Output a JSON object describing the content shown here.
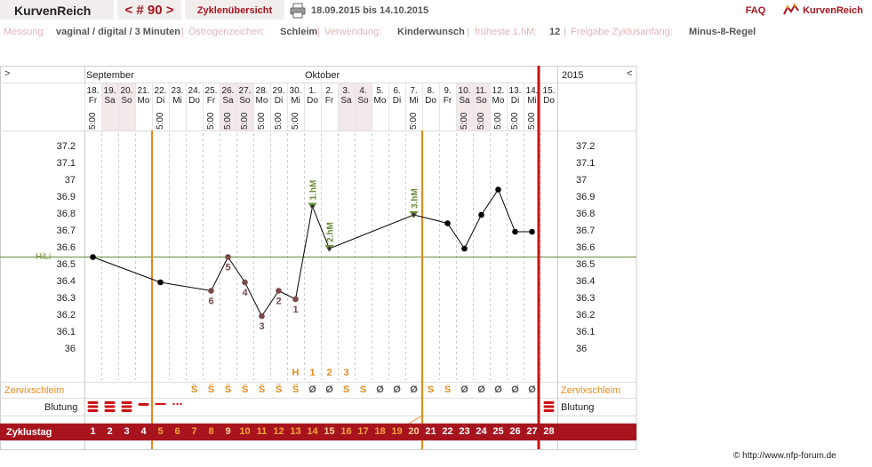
{
  "topbar": {
    "app_title": "KurvenReich",
    "cycle_nav": "< # 90 >",
    "overview": "Zyklenübersicht",
    "date_range": "18.09.2015 bis 14.10.2015",
    "faq": "FAQ",
    "brand": "KurvenReich"
  },
  "info": {
    "messung_label": "Messung:",
    "messung_value": "vaginal / digital / 3 Minuten",
    "oestrogen_label": "Östrogenzeichen:",
    "oestrogen_value": "Schleim",
    "verwendung_label": "Verwendung:",
    "verwendung_value": "Kinderwunsch",
    "fruehest_label": "früheste 1.hM:",
    "fruehest_value": "12",
    "freigabe_label": "Freigabe Zyklusanfang:",
    "freigabe_value": "Minus-8-Regel"
  },
  "chart_header": {
    "left_arrow": ">",
    "right_arrow": "<",
    "month1": "September",
    "month2": "Oktober",
    "year": "2015",
    "time": "5:00"
  },
  "days": [
    {
      "d": "18.",
      "w": "Fr",
      "we": false
    },
    {
      "d": "19.",
      "w": "Sa",
      "we": true
    },
    {
      "d": "20.",
      "w": "So",
      "we": true
    },
    {
      "d": "21.",
      "w": "Mo",
      "we": false
    },
    {
      "d": "22.",
      "w": "Di",
      "we": false
    },
    {
      "d": "23.",
      "w": "Mi",
      "we": false
    },
    {
      "d": "24.",
      "w": "Do",
      "we": false
    },
    {
      "d": "25.",
      "w": "Fr",
      "we": false
    },
    {
      "d": "26.",
      "w": "Sa",
      "we": true
    },
    {
      "d": "27.",
      "w": "So",
      "we": true
    },
    {
      "d": "28.",
      "w": "Mo",
      "we": false
    },
    {
      "d": "29.",
      "w": "Di",
      "we": false
    },
    {
      "d": "30.",
      "w": "Mi",
      "we": false
    },
    {
      "d": "1.",
      "w": "Do",
      "we": false
    },
    {
      "d": "2.",
      "w": "Fr",
      "we": false
    },
    {
      "d": "3.",
      "w": "Sa",
      "we": true
    },
    {
      "d": "4.",
      "w": "So",
      "we": true
    },
    {
      "d": "5.",
      "w": "Mo",
      "we": false
    },
    {
      "d": "6.",
      "w": "Di",
      "we": false
    },
    {
      "d": "7.",
      "w": "Mi",
      "we": false
    },
    {
      "d": "8.",
      "w": "Do",
      "we": false
    },
    {
      "d": "9.",
      "w": "Fr",
      "we": false
    },
    {
      "d": "10.",
      "w": "Sa",
      "we": true
    },
    {
      "d": "11.",
      "w": "So",
      "we": true
    },
    {
      "d": "12.",
      "w": "Mo",
      "we": false
    },
    {
      "d": "13.",
      "w": "Di",
      "we": false
    },
    {
      "d": "14.",
      "w": "Mi",
      "we": false
    },
    {
      "d": "15.",
      "w": "Do",
      "we": false
    }
  ],
  "time_shown": [
    true,
    false,
    false,
    false,
    true,
    false,
    false,
    true,
    true,
    true,
    true,
    true,
    true,
    false,
    false,
    false,
    false,
    false,
    false,
    true,
    false,
    false,
    true,
    true,
    true,
    true,
    true,
    false
  ],
  "chart_data": {
    "type": "line",
    "x_cycle_day": [
      1,
      5,
      8,
      9,
      10,
      11,
      12,
      13,
      14,
      15,
      20,
      22,
      23,
      24,
      25,
      26,
      27
    ],
    "temperature": [
      36.55,
      36.4,
      36.35,
      36.55,
      36.4,
      36.2,
      36.35,
      36.3,
      36.85,
      36.6,
      36.8,
      36.75,
      36.6,
      36.8,
      36.95,
      36.7,
      36.7
    ],
    "ylim": [
      36.0,
      37.2
    ],
    "yticks": [
      "37.2",
      "37.1",
      "37",
      "36.9",
      "36.8",
      "36.7",
      "36.6",
      "36.5",
      "36.4",
      "36.3",
      "36.2",
      "36.1",
      "36"
    ],
    "hilevel_label": "HiLi",
    "hilevel_value": 36.55,
    "point_labels": [
      {
        "day": 8,
        "text": "6"
      },
      {
        "day": 9,
        "text": "5"
      },
      {
        "day": 10,
        "text": "4"
      },
      {
        "day": 11,
        "text": "3"
      },
      {
        "day": 12,
        "text": "2"
      },
      {
        "day": 13,
        "text": "1"
      }
    ],
    "hm_labels": [
      {
        "day": 14,
        "text": "1.hM"
      },
      {
        "day": 15,
        "text": "2.hM"
      },
      {
        "day": 20,
        "text": "3.hM"
      }
    ],
    "vertical_lines_orange": [
      4.5,
      20.5
    ],
    "vertical_line_red": 27.5
  },
  "mucus_markers": [
    {
      "day": 13,
      "text": "H"
    },
    {
      "day": 14,
      "text": "1"
    },
    {
      "day": 15,
      "text": "2"
    },
    {
      "day": 16,
      "text": "3"
    }
  ],
  "zervix": {
    "label": "Zervixschleim",
    "values": [
      "",
      "",
      "",
      "",
      "",
      "",
      "S̈",
      "S̈",
      "S̈",
      "S̈",
      "S̈",
      "S̈",
      "S̈",
      "Ø",
      "Ø",
      "S",
      "S",
      "Ø",
      "Ø",
      "Ø",
      "S",
      "S",
      "Ø",
      "Ø",
      "Ø",
      "Ø",
      "Ø",
      ""
    ]
  },
  "blutung": {
    "label": "Blutung"
  },
  "zyklustag": {
    "label": "Zyklustag",
    "values": [
      "1",
      "2",
      "3",
      "4",
      "5",
      "6",
      "7",
      "8",
      "9",
      "10",
      "11",
      "12",
      "13",
      "14",
      "15",
      "16",
      "17",
      "18",
      "19",
      "20",
      "21",
      "22",
      "23",
      "24",
      "25",
      "26",
      "27",
      "28"
    ]
  },
  "footer": "© http://www.nfp-forum.de",
  "colors": {
    "accent": "#a8141e",
    "orange": "#e8891a",
    "green": "#6b8e3a",
    "brown": "#7a4a4a"
  }
}
